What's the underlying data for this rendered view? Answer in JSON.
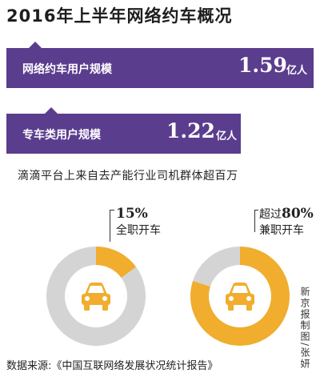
{
  "title": "2016年上半年网络约车概况",
  "stats": [
    {
      "label": "网络约车用户规模",
      "value": "1.59",
      "unit": "亿人"
    },
    {
      "label": "专车类用户规模",
      "value": "1.22",
      "unit": "亿人"
    }
  ],
  "subtitle": "滴滴平台上来自去产能行业司机群体超百万",
  "chart_data": [
    {
      "type": "pie",
      "title": "",
      "annotation_prefix": "",
      "annotation_value": "15%",
      "annotation_desc": "全职开车",
      "values": [
        15,
        85
      ],
      "colors": [
        "#f0ad2e",
        "#d4d4d4"
      ]
    },
    {
      "type": "pie",
      "title": "",
      "annotation_prefix": "超过",
      "annotation_value": "80%",
      "annotation_desc": "兼职开车",
      "values": [
        80,
        20
      ],
      "colors": [
        "#f0ad2e",
        "#d4d4d4"
      ]
    }
  ],
  "credit": "新京报制图/张妍",
  "source": "数据来源:《中国互联网络发展状况统计报告》",
  "icons": [
    "car-icon"
  ],
  "colors": {
    "band": "#5b3d8e",
    "accent": "#f0ad2e",
    "ring": "#d4d4d4"
  }
}
